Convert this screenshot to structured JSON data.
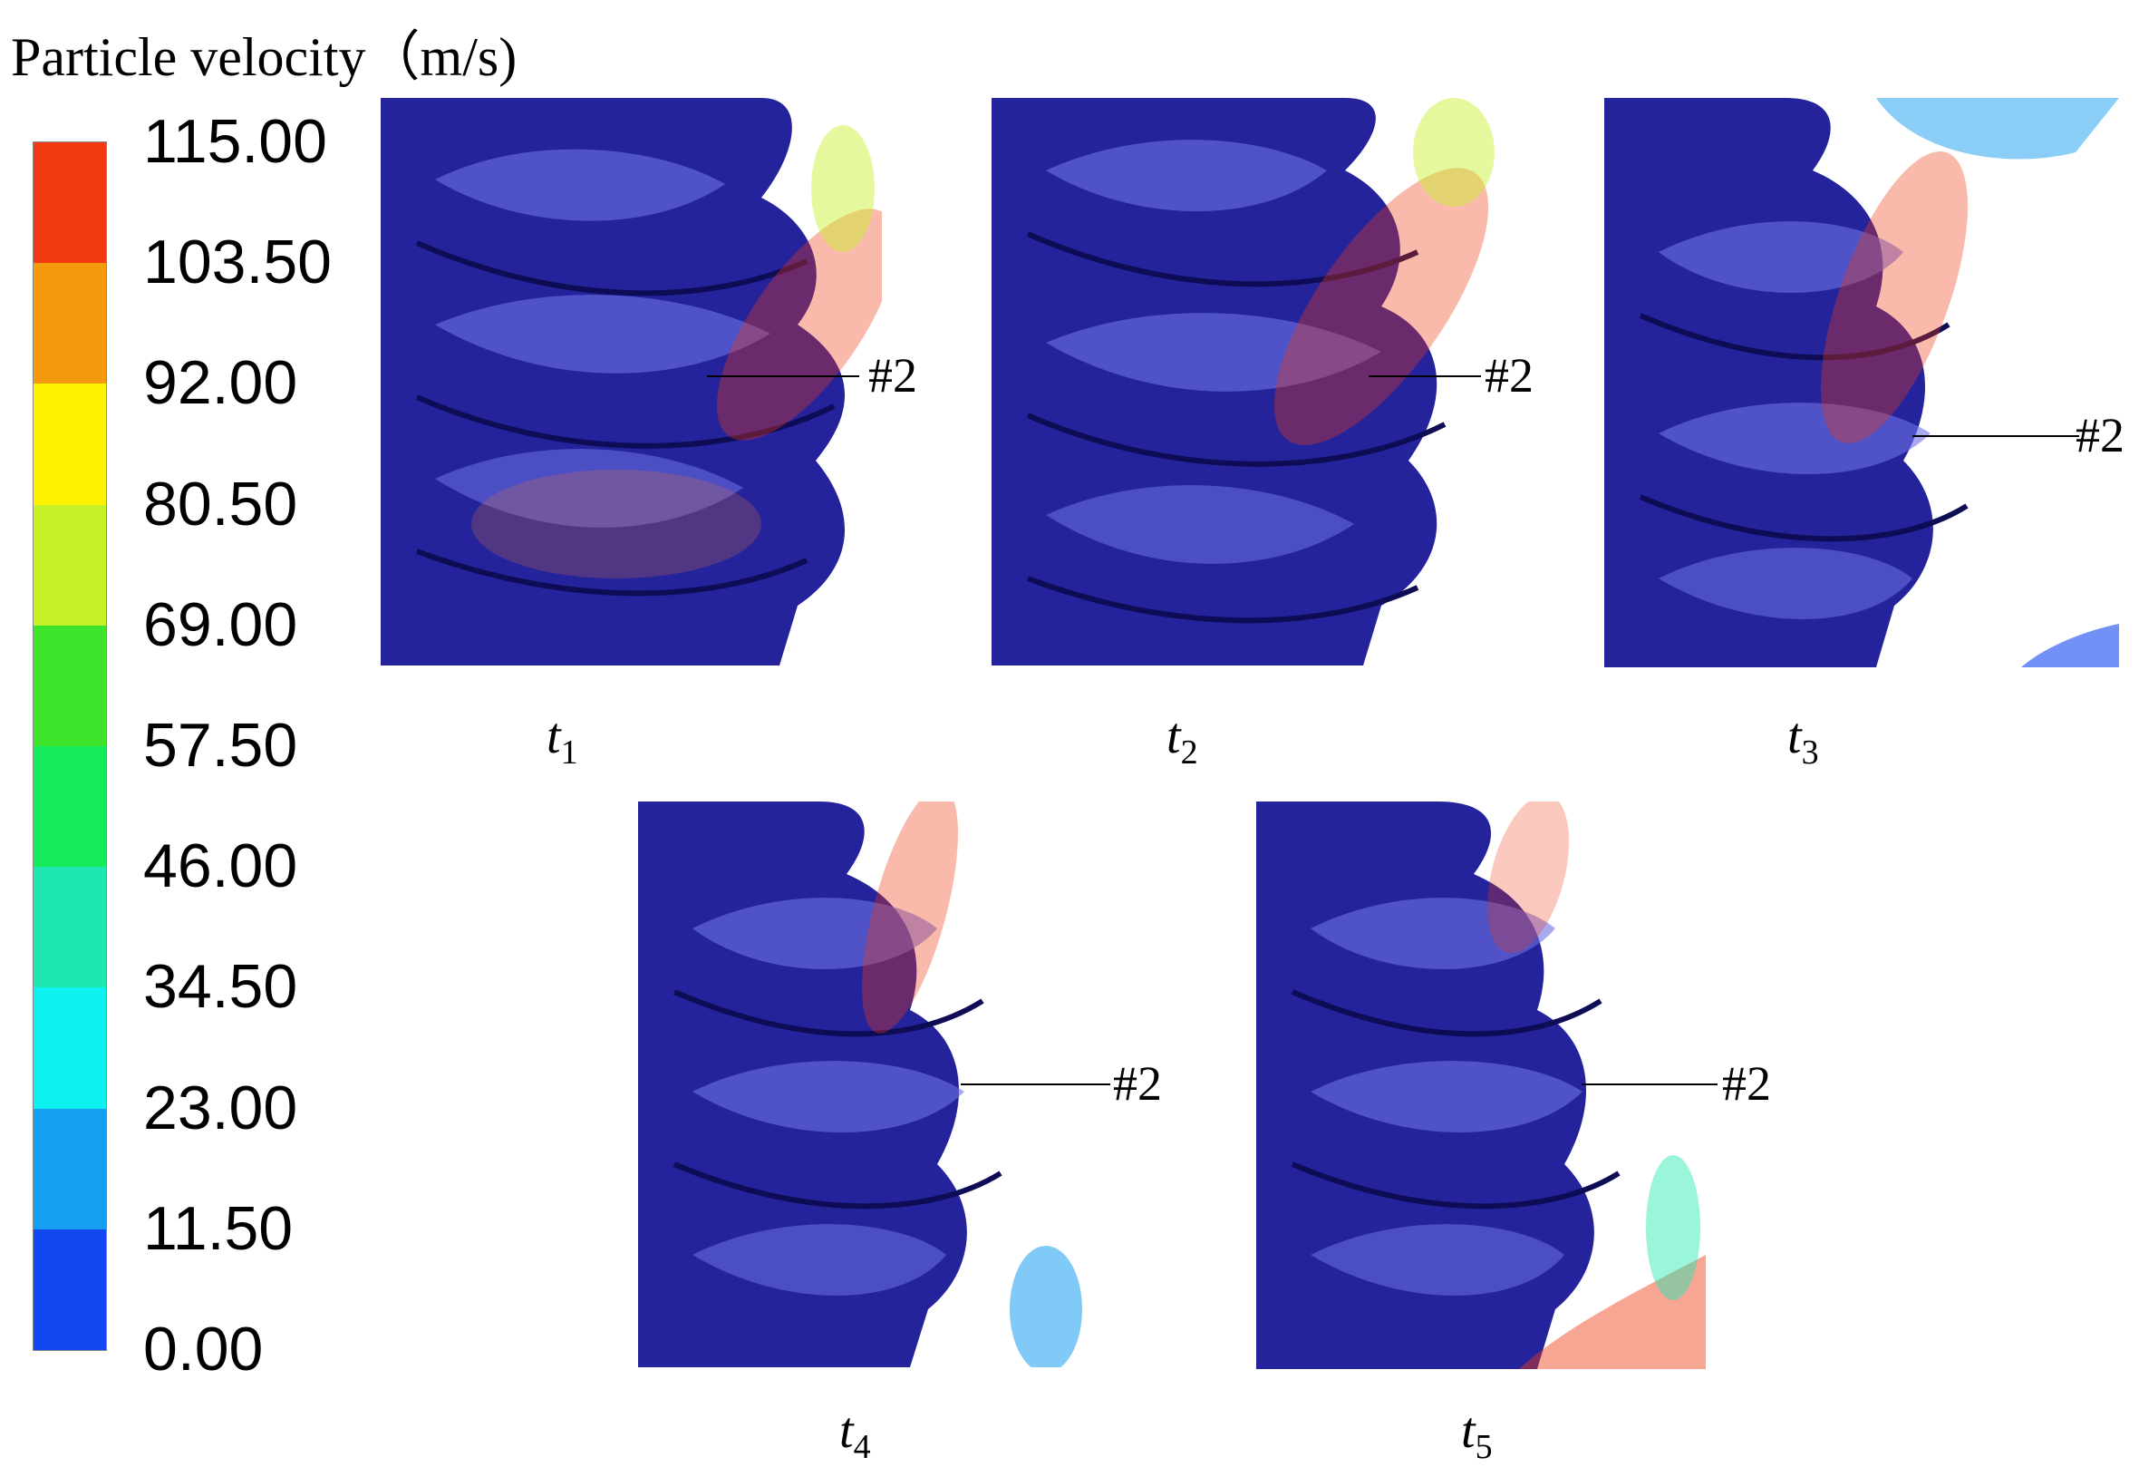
{
  "title": "Particle velocity（m/s)",
  "colorbar": {
    "labels": [
      "115.00",
      "103.50",
      "92.00",
      "80.50",
      "69.00",
      "57.50",
      "46.00",
      "34.50",
      "23.00",
      "11.50",
      "0.00"
    ],
    "segment_colors": [
      "#ef3a12",
      "#f59a0d",
      "#fff200",
      "#c8f028",
      "#3ee42a",
      "#17ec5c",
      "#1ee8b0",
      "#0ff0f0",
      "#169ef0",
      "#1248f0"
    ]
  },
  "panels": [
    {
      "time": "t",
      "sub": "1",
      "callout": "#2"
    },
    {
      "time": "t",
      "sub": "2",
      "callout": "#2"
    },
    {
      "time": "t",
      "sub": "3",
      "callout": "#2"
    },
    {
      "time": "t",
      "sub": "4",
      "callout": "#2"
    },
    {
      "time": "t",
      "sub": "5",
      "callout": "#2"
    }
  ],
  "colors": {
    "blade": "#24239c",
    "blade_highlight": "#6e72e6",
    "blade_edge": "#0d0c55"
  }
}
